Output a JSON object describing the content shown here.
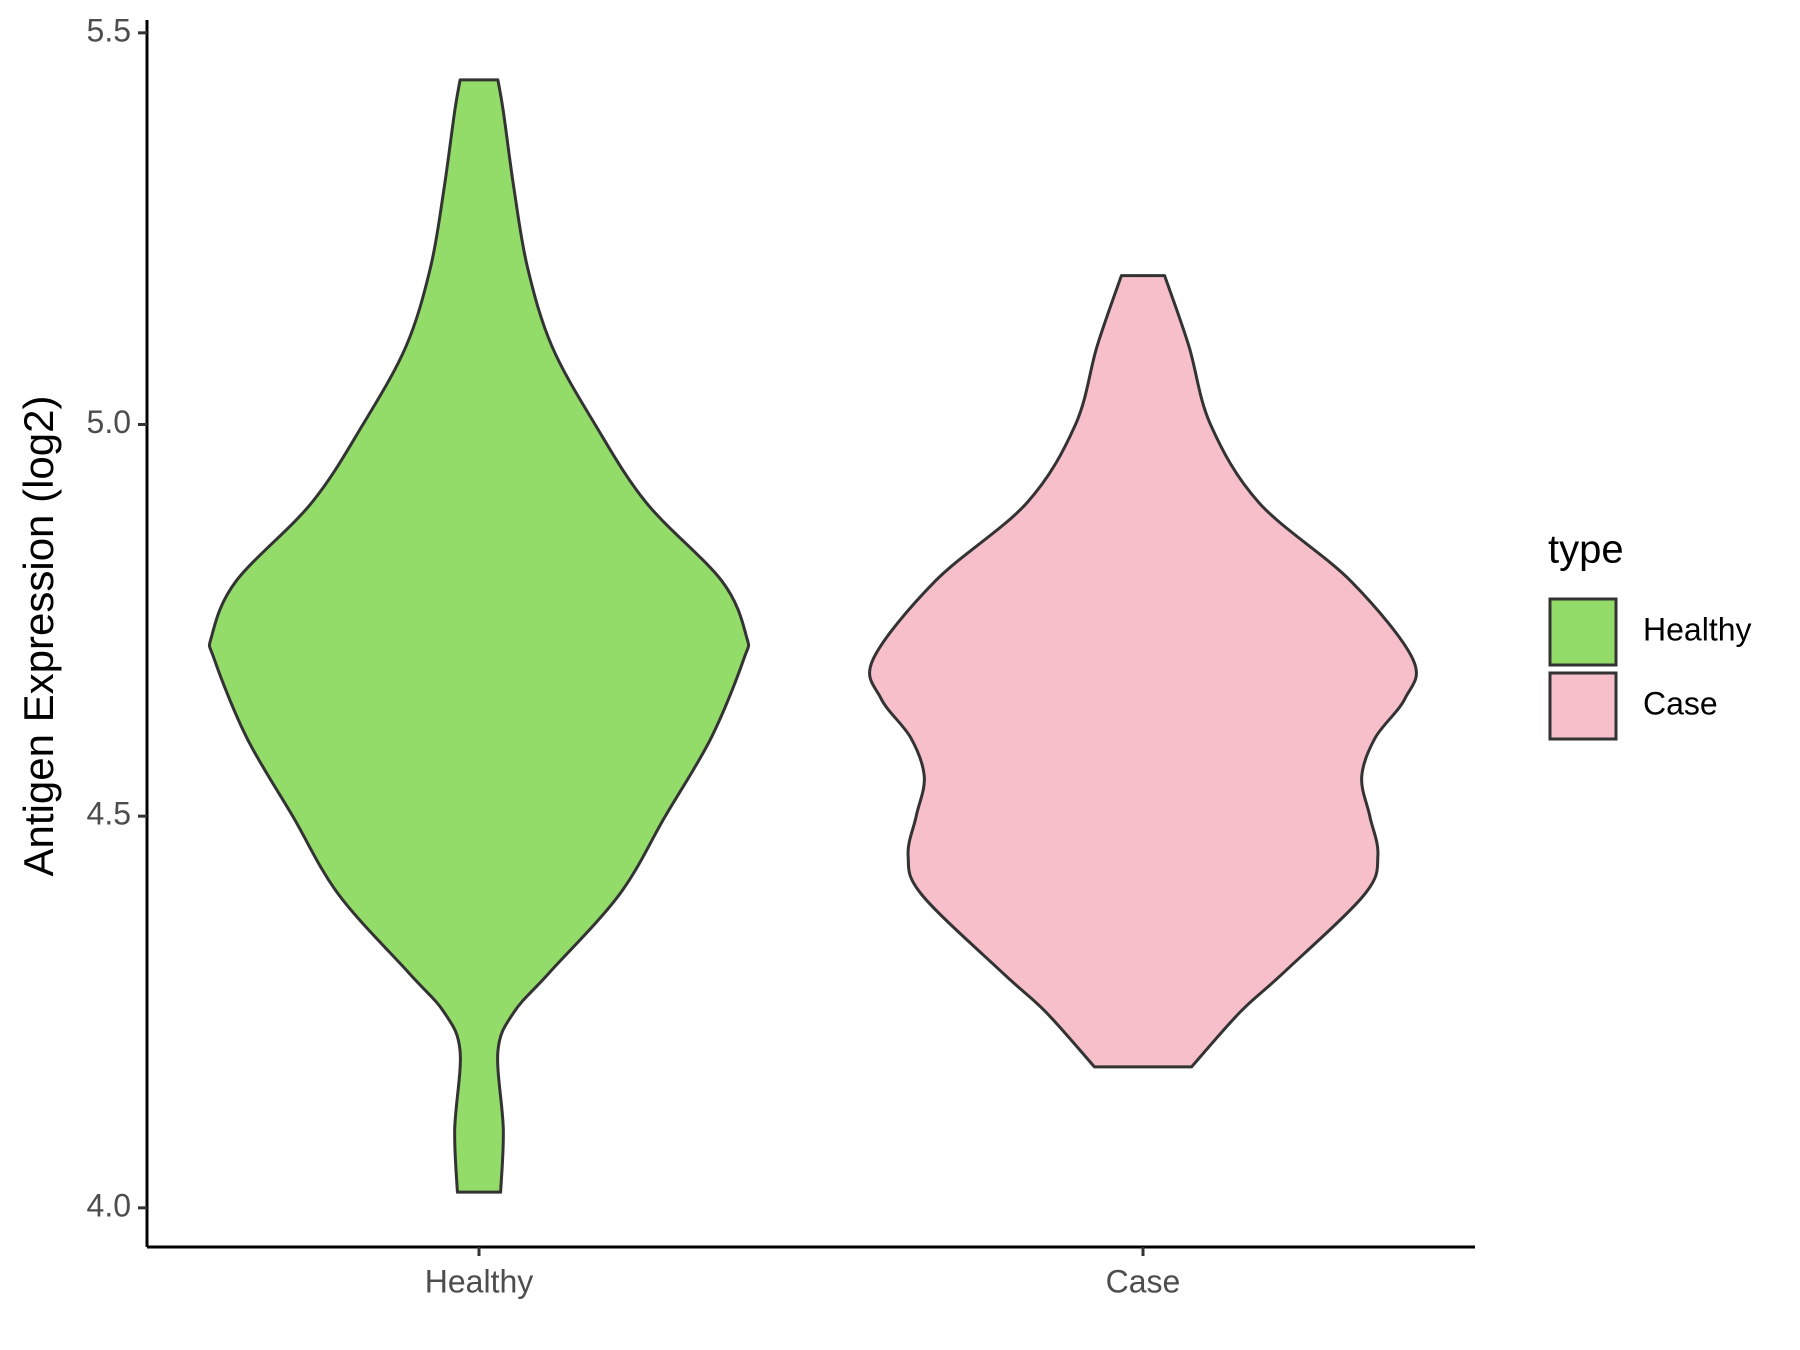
{
  "chart_data": {
    "type": "violin",
    "y_label": "Antigen Expression (log2)",
    "categories": [
      "Healthy",
      "Case"
    ],
    "ylim": [
      3.95,
      5.51
    ],
    "yticks": [
      {
        "value": 4,
        "label": "4.0"
      },
      4.5,
      {
        "value": 5,
        "label": "5.0"
      },
      5.5
    ],
    "legend_title": "type",
    "legend": "right",
    "series": [
      {
        "name": "Healthy",
        "color": "#93dc6a",
        "y": [
          4.02,
          4.1,
          4.2,
          4.25,
          4.3,
          4.4,
          4.5,
          4.6,
          4.7,
          4.73,
          4.8,
          4.9,
          5.0,
          5.1,
          5.2,
          5.3,
          5.4,
          5.44
        ],
        "density": [
          0.08,
          0.09,
          0.07,
          0.13,
          0.26,
          0.52,
          0.69,
          0.86,
          0.98,
          0.99,
          0.9,
          0.62,
          0.43,
          0.27,
          0.18,
          0.13,
          0.09,
          0.07
        ]
      },
      {
        "name": "Case",
        "color": "#f7bfca",
        "y": [
          4.18,
          4.25,
          4.3,
          4.4,
          4.45,
          4.5,
          4.55,
          4.6,
          4.65,
          4.7,
          4.8,
          4.9,
          5.0,
          5.1,
          5.19
        ],
        "density": [
          0.18,
          0.36,
          0.52,
          0.82,
          0.87,
          0.84,
          0.81,
          0.86,
          0.97,
          1.0,
          0.77,
          0.43,
          0.25,
          0.17,
          0.08
        ]
      }
    ]
  }
}
